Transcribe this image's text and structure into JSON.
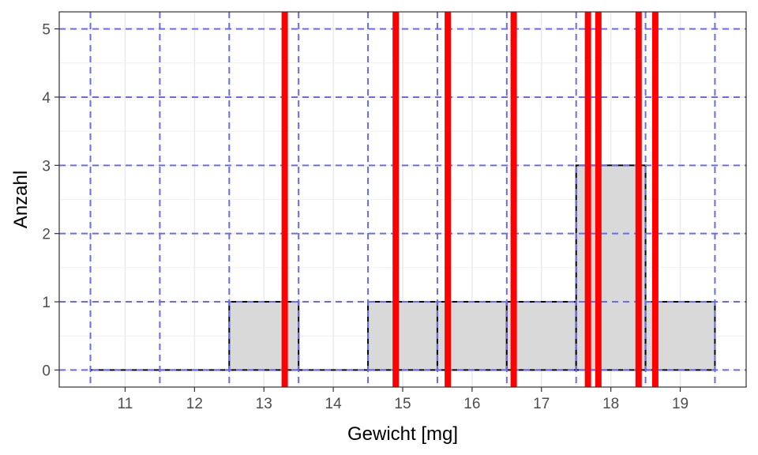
{
  "chart_data": {
    "type": "bar",
    "xlabel": "Gewicht [mg]",
    "ylabel": "Anzahl",
    "xlim": [
      10.05,
      19.95
    ],
    "ylim": [
      -0.25,
      5.25
    ],
    "x_ticks": [
      11,
      12,
      13,
      14,
      15,
      16,
      17,
      18,
      19
    ],
    "y_ticks": [
      0,
      1,
      2,
      3,
      4,
      5
    ],
    "bins": [
      {
        "start": 10.5,
        "end": 11.5,
        "count": 0
      },
      {
        "start": 11.5,
        "end": 12.5,
        "count": 0
      },
      {
        "start": 12.5,
        "end": 13.5,
        "count": 1
      },
      {
        "start": 13.5,
        "end": 14.5,
        "count": 0
      },
      {
        "start": 14.5,
        "end": 15.5,
        "count": 1
      },
      {
        "start": 15.5,
        "end": 16.5,
        "count": 1
      },
      {
        "start": 16.5,
        "end": 17.5,
        "count": 1
      },
      {
        "start": 17.5,
        "end": 18.5,
        "count": 3
      },
      {
        "start": 18.5,
        "end": 19.5,
        "count": 1
      }
    ],
    "data_points": [
      13.3,
      14.9,
      15.65,
      16.6,
      17.67,
      17.82,
      18.4,
      18.64
    ],
    "reference_lines_x": [
      10.5,
      11.5,
      12.5,
      13.5,
      14.5,
      15.5,
      16.5,
      17.5,
      18.5,
      19.5
    ],
    "reference_lines_y": [
      0,
      1,
      2,
      3,
      4,
      5
    ],
    "grid": true,
    "colors": {
      "bar_fill": "#d9d9d9",
      "bar_stroke": "#000000",
      "data_line": "#ff0000",
      "reference_line": "#6a6af0",
      "grid": "#ebebeb"
    }
  }
}
